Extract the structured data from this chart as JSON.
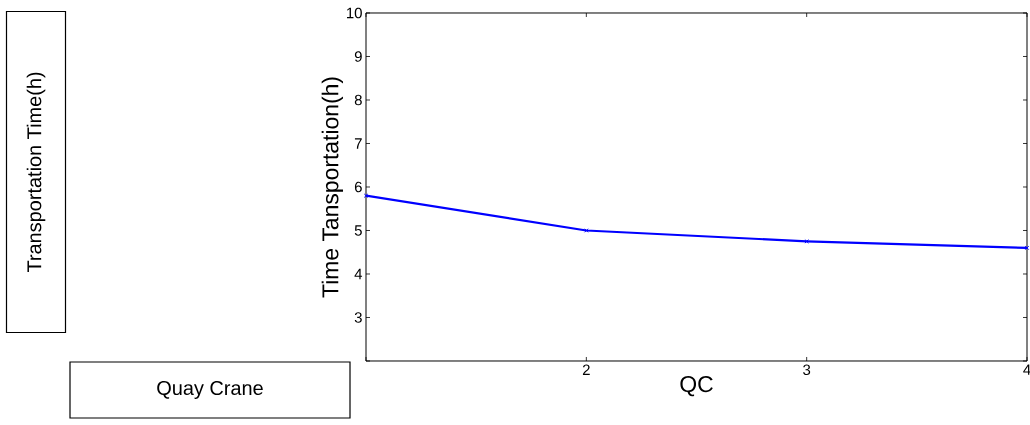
{
  "chart_data": {
    "type": "line",
    "xlabel": "QC",
    "ylabel": "Time Tansportation(h)",
    "x": [
      1,
      2,
      3,
      4
    ],
    "series": [
      {
        "color": "#0000ff",
        "values": [
          5.8,
          5.0,
          4.75,
          4.6
        ]
      }
    ],
    "xlim": [
      1,
      4
    ],
    "ylim": [
      2,
      10
    ],
    "xticks": [
      {
        "value": 1,
        "label": null
      },
      2,
      3,
      4
    ],
    "yticks": [
      {
        "value": 2,
        "label": null
      },
      3,
      4,
      5,
      6,
      7,
      8,
      9,
      10
    ],
    "marker": "cross",
    "line_style": "solid",
    "annotations": [
      "Transportation Time(h)",
      "Quay Crane"
    ]
  }
}
